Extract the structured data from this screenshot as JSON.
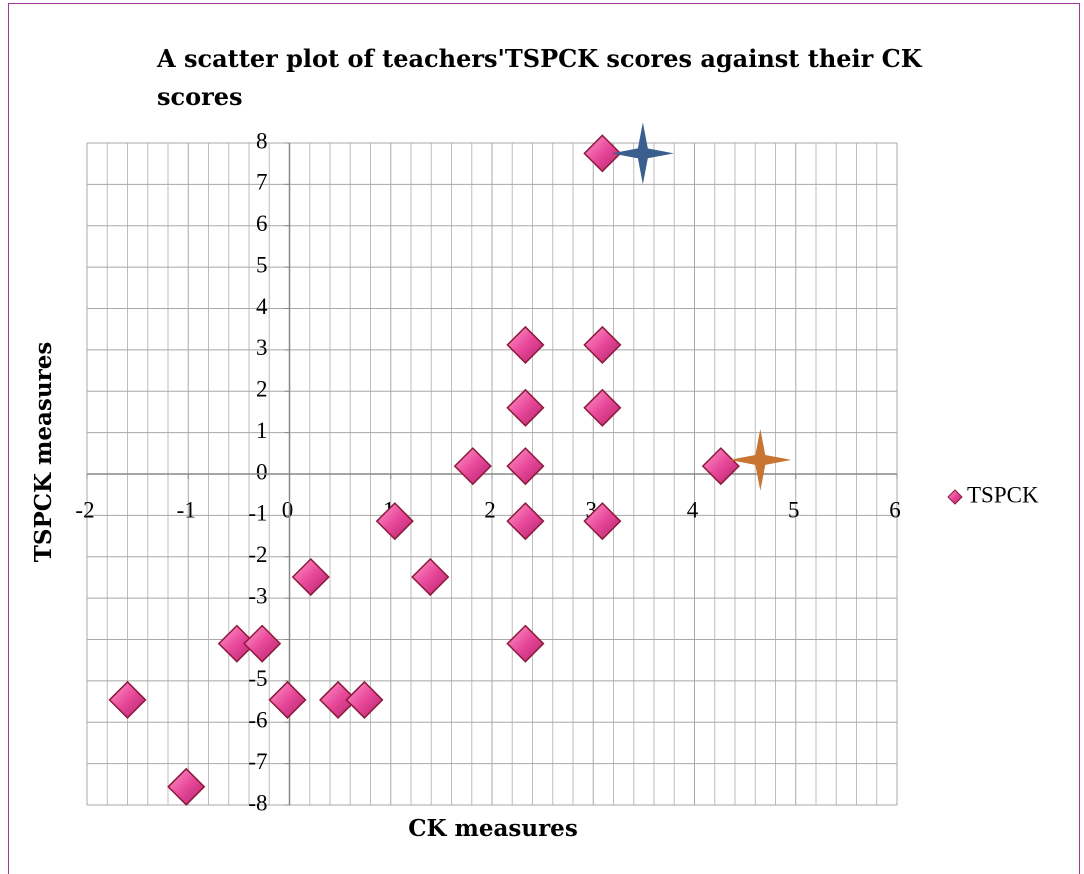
{
  "chart_data": {
    "type": "scatter",
    "title": "A scatter plot of teachers'TSPCK scores against their CK scores",
    "x_label": "CK measures",
    "y_label": "TSPCK measures",
    "xlim": [
      -2,
      6
    ],
    "ylim": [
      -8,
      8
    ],
    "xticks": [
      -2,
      -1,
      0,
      1,
      2,
      3,
      4,
      5,
      6
    ],
    "yticks": [
      -8,
      -7,
      -6,
      -5,
      -4,
      -3,
      -2,
      -1,
      0,
      1,
      2,
      3,
      4,
      5,
      6,
      7,
      8
    ],
    "grid": true,
    "legend": "right",
    "series": [
      {
        "name": "TSPCK",
        "color": "#e8489a",
        "marker": "diamond",
        "x": [
          3.09,
          2.33,
          3.09,
          2.33,
          3.09,
          1.81,
          2.33,
          4.26,
          1.04,
          2.33,
          3.09,
          0.21,
          1.39,
          -0.52,
          -0.27,
          2.33,
          -1.6,
          -0.02,
          0.48,
          0.74,
          -1.02
        ],
        "values": [
          7.75,
          3.12,
          3.12,
          1.6,
          1.6,
          0.19,
          0.19,
          0.19,
          -1.14,
          -1.14,
          -1.14,
          -2.49,
          -2.49,
          -4.1,
          -4.1,
          -4.1,
          -5.46,
          -5.46,
          -5.46,
          -5.46,
          -7.56
        ]
      },
      {
        "color": "#3a5f8f",
        "marker": "star",
        "x": [
          3.49
        ],
        "values": [
          7.75
        ]
      },
      {
        "color": "#c87533",
        "marker": "star",
        "x": [
          4.65
        ],
        "values": [
          0.34
        ]
      }
    ]
  }
}
